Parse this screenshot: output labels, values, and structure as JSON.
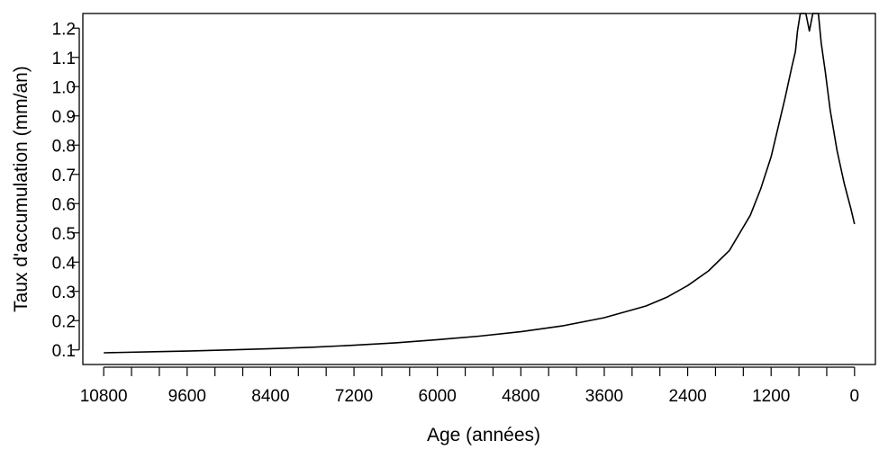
{
  "chart_data": {
    "type": "line",
    "title": "",
    "xlabel": "Age (années)",
    "ylabel": "Taux d'accumulation (mm/an)",
    "x_reversed": true,
    "xlim": [
      11100,
      -300
    ],
    "ylim": [
      0.05,
      1.25
    ],
    "x_ticks_major": [
      10800,
      9600,
      8400,
      7200,
      6000,
      4800,
      3600,
      2400,
      1200,
      0
    ],
    "x_tick_labels": [
      "10800",
      "9600",
      "8400",
      "7200",
      "6000",
      "4800",
      "3600",
      "2400",
      "1200",
      "0"
    ],
    "x_tick_step_minor": 400,
    "y_ticks": [
      0.1,
      0.2,
      0.3,
      0.4,
      0.5,
      0.6,
      0.7,
      0.8,
      0.9,
      1.0,
      1.1,
      1.2
    ],
    "y_tick_labels": [
      "0.1",
      "0.2",
      "0.3",
      "0.4",
      "0.5",
      "0.6",
      "0.7",
      "0.8",
      "0.9",
      "1.0",
      "1.1",
      "1.2"
    ],
    "grid": false,
    "legend": "none",
    "series": [
      {
        "color": "#000000",
        "points": [
          [
            10800,
            0.09
          ],
          [
            10000,
            0.094
          ],
          [
            9600,
            0.096
          ],
          [
            9000,
            0.1
          ],
          [
            8400,
            0.104
          ],
          [
            7800,
            0.109
          ],
          [
            7200,
            0.116
          ],
          [
            6600,
            0.124
          ],
          [
            6000,
            0.135
          ],
          [
            5400,
            0.147
          ],
          [
            4800,
            0.162
          ],
          [
            4200,
            0.182
          ],
          [
            3600,
            0.21
          ],
          [
            3000,
            0.25
          ],
          [
            2700,
            0.28
          ],
          [
            2400,
            0.32
          ],
          [
            2100,
            0.37
          ],
          [
            1800,
            0.44
          ],
          [
            1500,
            0.56
          ],
          [
            1350,
            0.65
          ],
          [
            1200,
            0.76
          ],
          [
            1100,
            0.86
          ],
          [
            1000,
            0.96
          ],
          [
            900,
            1.07
          ],
          [
            850,
            1.12
          ],
          [
            820,
            1.19
          ],
          [
            780,
            1.25
          ],
          [
            700,
            1.25
          ],
          [
            650,
            1.19
          ],
          [
            600,
            1.25
          ],
          [
            520,
            1.25
          ],
          [
            480,
            1.15
          ],
          [
            420,
            1.05
          ],
          [
            350,
            0.92
          ],
          [
            250,
            0.78
          ],
          [
            150,
            0.67
          ],
          [
            50,
            0.58
          ],
          [
            0,
            0.53
          ]
        ]
      }
    ]
  }
}
